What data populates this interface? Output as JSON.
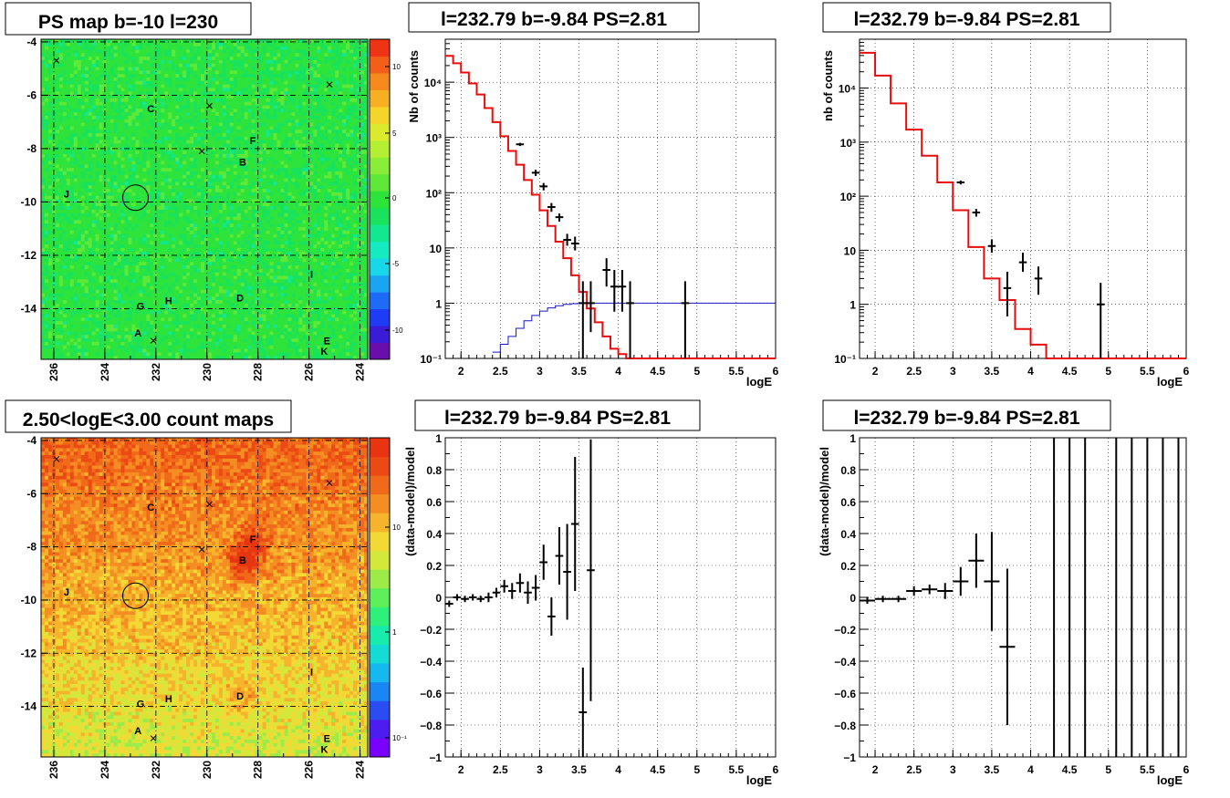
{
  "chart_data": [
    {
      "type": "heatmap",
      "title": "PS map b=-10 l=230",
      "xticks": [
        "236",
        "234",
        "232",
        "230",
        "228",
        "226",
        "224"
      ],
      "yticks": [
        "-4",
        "-6",
        "-8",
        "-10",
        "-12",
        "-14"
      ],
      "xlim": [
        236.5,
        223.7
      ],
      "ylim": [
        -15.9,
        -3.9
      ],
      "grid": true,
      "colorbar": {
        "ticks": [
          "10",
          "5",
          "0",
          "-5",
          "-10"
        ],
        "range": [
          -14,
          14
        ]
      },
      "circle": {
        "l": 232.8,
        "b": -9.84
      },
      "sources": [
        {
          "label": "C",
          "l": 232.2,
          "b": -6.5
        },
        {
          "label": "F",
          "l": 228.2,
          "b": -7.7
        },
        {
          "label": "B",
          "l": 228.6,
          "b": -8.5
        },
        {
          "label": "J",
          "l": 235.5,
          "b": -9.7
        },
        {
          "label": "I",
          "l": 225.9,
          "b": -12.7
        },
        {
          "label": "D",
          "l": 228.7,
          "b": -13.6
        },
        {
          "label": "G",
          "l": 232.6,
          "b": -13.9
        },
        {
          "label": "H",
          "l": 231.5,
          "b": -13.7
        },
        {
          "label": "A",
          "l": 232.7,
          "b": -14.9
        },
        {
          "label": "E",
          "l": 225.3,
          "b": -15.2
        },
        {
          "label": "K",
          "l": 225.4,
          "b": -15.6
        }
      ],
      "crosses": [
        {
          "l": 235.9,
          "b": -4.7
        },
        {
          "l": 229.9,
          "b": -6.4
        },
        {
          "l": 230.2,
          "b": -8.1
        },
        {
          "l": 225.2,
          "b": -5.6
        },
        {
          "l": 232.1,
          "b": -15.2
        }
      ]
    },
    {
      "type": "heatmap",
      "title": "2.50<logE<3.00 count maps",
      "xticks": [
        "236",
        "234",
        "232",
        "230",
        "228",
        "226",
        "224"
      ],
      "yticks": [
        "-4",
        "-6",
        "-8",
        "-10",
        "-12",
        "-14"
      ],
      "xlim": [
        236.5,
        223.7
      ],
      "ylim": [
        -15.9,
        -3.9
      ],
      "grid": true,
      "colorbar": {
        "ticks": [
          "10",
          "1",
          "10⁻¹"
        ],
        "log": true,
        "range": [
          0.05,
          60
        ]
      },
      "hotspots": [
        {
          "l": 228.6,
          "b": -8.5,
          "amp": 2.0
        },
        {
          "l": 228.2,
          "b": -7.7,
          "amp": 1.2
        },
        {
          "l": 228.7,
          "b": -13.6,
          "amp": 0.9
        }
      ]
    },
    {
      "type": "step",
      "title": "l=232.79 b=-9.84 PS=2.81",
      "xlabel": "logE",
      "ylabel": "Nb of counts",
      "xlim": [
        1.8,
        6.0
      ],
      "ylim": [
        0.1,
        60000
      ],
      "log_y": true,
      "xticks": [
        "2",
        "2.5",
        "3",
        "3.5",
        "4",
        "4.5",
        "5",
        "5.5",
        "6"
      ],
      "yticks": [
        "10⁻¹",
        "1",
        "10",
        "10²",
        "10³",
        "10⁴"
      ],
      "grid": true,
      "model_red": {
        "edges": [
          1.8,
          1.9,
          2.0,
          2.1,
          2.2,
          2.3,
          2.4,
          2.5,
          2.6,
          2.7,
          2.8,
          2.9,
          3.0,
          3.1,
          3.2,
          3.3,
          3.4,
          3.5,
          3.6,
          3.7,
          3.8,
          3.9,
          4.0,
          4.1,
          4.2,
          4.3,
          6.0
        ],
        "values": [
          30000,
          22000,
          15000,
          9500,
          6000,
          3400,
          1900,
          1050,
          570,
          320,
          170,
          92,
          48,
          25,
          13,
          6.5,
          3.2,
          1.6,
          0.8,
          0.45,
          0.25,
          0.15,
          0.12,
          0.1,
          0.1,
          0.1
        ]
      },
      "model_blue": {
        "edges": [
          2.4,
          2.5,
          2.6,
          2.7,
          2.8,
          2.9,
          3.0,
          3.1,
          3.2,
          3.3,
          3.4,
          3.5,
          6.0
        ],
        "values": [
          0.13,
          0.18,
          0.25,
          0.35,
          0.48,
          0.6,
          0.72,
          0.82,
          0.9,
          0.95,
          0.98,
          1.0
        ]
      },
      "data": [
        {
          "x": 2.75,
          "y": 750,
          "lo": 700,
          "hi": 800
        },
        {
          "x": 2.95,
          "y": 230,
          "lo": 200,
          "hi": 260
        },
        {
          "x": 3.05,
          "y": 130,
          "lo": 110,
          "hi": 150
        },
        {
          "x": 3.15,
          "y": 55,
          "lo": 45,
          "hi": 65
        },
        {
          "x": 3.25,
          "y": 36,
          "lo": 30,
          "hi": 42
        },
        {
          "x": 3.35,
          "y": 14,
          "lo": 11,
          "hi": 18
        },
        {
          "x": 3.45,
          "y": 12,
          "lo": 9,
          "hi": 16
        },
        {
          "x": 3.55,
          "y": 1,
          "lo": 0.1,
          "hi": 2.5
        },
        {
          "x": 3.65,
          "y": 1,
          "lo": 0.3,
          "hi": 2.5
        },
        {
          "x": 3.85,
          "y": 4,
          "lo": 2,
          "hi": 6.5
        },
        {
          "x": 3.95,
          "y": 2,
          "lo": 0.7,
          "hi": 4
        },
        {
          "x": 4.05,
          "y": 2,
          "lo": 0.7,
          "hi": 4
        },
        {
          "x": 4.15,
          "y": 1,
          "lo": 0.1,
          "hi": 2.5
        },
        {
          "x": 4.85,
          "y": 1,
          "lo": 0.1,
          "hi": 2.5
        }
      ]
    },
    {
      "type": "step",
      "title": "l=232.79 b=-9.84 PS=2.81",
      "xlabel": "logE",
      "ylabel": "nb of counts",
      "xlim": [
        1.8,
        6.0
      ],
      "ylim": [
        0.1,
        80000
      ],
      "log_y": true,
      "xticks": [
        "2",
        "2.5",
        "3",
        "3.5",
        "4",
        "4.5",
        "5",
        "5.5",
        "6"
      ],
      "yticks": [
        "10⁻¹",
        "1",
        "10",
        "10²",
        "10³",
        "10⁴"
      ],
      "grid": true,
      "model_red": {
        "edges": [
          1.8,
          2.0,
          2.2,
          2.4,
          2.6,
          2.8,
          3.0,
          3.2,
          3.4,
          3.6,
          3.8,
          4.0,
          4.2,
          4.4,
          6.0
        ],
        "values": [
          45000,
          17000,
          5200,
          1700,
          560,
          180,
          55,
          11.5,
          3,
          1.2,
          0.35,
          0.18,
          0.1,
          0.1
        ]
      },
      "data": [
        {
          "x": 3.1,
          "y": 180,
          "lo": 165,
          "hi": 195
        },
        {
          "x": 3.3,
          "y": 50,
          "lo": 42,
          "hi": 58
        },
        {
          "x": 3.5,
          "y": 12,
          "lo": 9,
          "hi": 16
        },
        {
          "x": 3.7,
          "y": 2,
          "lo": 0.6,
          "hi": 4
        },
        {
          "x": 3.9,
          "y": 6,
          "lo": 4,
          "hi": 9
        },
        {
          "x": 4.1,
          "y": 3,
          "lo": 1.5,
          "hi": 5
        },
        {
          "x": 4.9,
          "y": 1,
          "lo": 0.1,
          "hi": 2.5
        }
      ]
    },
    {
      "type": "scatter",
      "title": "l=232.79 b=-9.84 PS=2.81",
      "xlabel": "logE",
      "ylabel": "(data-model)/model",
      "xlim": [
        1.8,
        6.0
      ],
      "ylim": [
        -1,
        1
      ],
      "xticks": [
        "2",
        "2.5",
        "3",
        "3.5",
        "4",
        "4.5",
        "5",
        "5.5",
        "6"
      ],
      "yticks": [
        "−1",
        "−0.8",
        "−0.6",
        "−0.4",
        "−0.2",
        "0",
        "0.2",
        "0.4",
        "0.6",
        "0.8",
        "1"
      ],
      "grid": true,
      "data": [
        {
          "x": 1.85,
          "y": -0.04,
          "e": 0.02
        },
        {
          "x": 1.95,
          "y": 0.0,
          "e": 0.02
        },
        {
          "x": 2.05,
          "y": -0.01,
          "e": 0.02
        },
        {
          "x": 2.15,
          "y": 0.0,
          "e": 0.02
        },
        {
          "x": 2.25,
          "y": -0.01,
          "e": 0.02
        },
        {
          "x": 2.35,
          "y": 0.0,
          "e": 0.03
        },
        {
          "x": 2.45,
          "y": 0.03,
          "e": 0.03
        },
        {
          "x": 2.55,
          "y": 0.07,
          "e": 0.04
        },
        {
          "x": 2.65,
          "y": 0.04,
          "e": 0.05
        },
        {
          "x": 2.75,
          "y": 0.09,
          "e": 0.06
        },
        {
          "x": 2.85,
          "y": 0.03,
          "e": 0.07
        },
        {
          "x": 2.95,
          "y": 0.06,
          "e": 0.08
        },
        {
          "x": 3.05,
          "y": 0.22,
          "e": 0.11
        },
        {
          "x": 3.15,
          "y": -0.12,
          "e": 0.12
        },
        {
          "x": 3.25,
          "y": 0.26,
          "e": 0.18
        },
        {
          "x": 3.35,
          "y": 0.16,
          "e": 0.3
        },
        {
          "x": 3.45,
          "y": 0.46,
          "e": 0.42
        },
        {
          "x": 3.55,
          "y": -0.72,
          "e": 0.28
        },
        {
          "x": 3.65,
          "y": 0.17,
          "e": 0.82
        }
      ]
    },
    {
      "type": "scatter",
      "title": "l=232.79 b=-9.84 PS=2.81",
      "xlabel": "logE",
      "ylabel": "(data-model)/model",
      "xlim": [
        1.8,
        6.0
      ],
      "ylim": [
        -1,
        1
      ],
      "xticks": [
        "2",
        "2.5",
        "3",
        "3.5",
        "4",
        "4.5",
        "5",
        "5.5",
        "6"
      ],
      "yticks": [
        "−1",
        "−0.8",
        "−0.6",
        "−0.4",
        "−0.2",
        "0",
        "0.2",
        "0.4",
        "0.6",
        "0.8",
        "1"
      ],
      "grid": true,
      "data": [
        {
          "x": 1.9,
          "y": -0.02,
          "e": 0.02
        },
        {
          "x": 2.1,
          "y": -0.01,
          "e": 0.02
        },
        {
          "x": 2.3,
          "y": -0.01,
          "e": 0.02
        },
        {
          "x": 2.5,
          "y": 0.04,
          "e": 0.03
        },
        {
          "x": 2.7,
          "y": 0.05,
          "e": 0.03
        },
        {
          "x": 2.9,
          "y": 0.04,
          "e": 0.05
        },
        {
          "x": 3.1,
          "y": 0.1,
          "e": 0.09
        },
        {
          "x": 3.3,
          "y": 0.23,
          "e": 0.17
        },
        {
          "x": 3.5,
          "y": 0.1,
          "e": 0.31
        },
        {
          "x": 3.7,
          "y": -0.31,
          "e": 0.49
        }
      ],
      "full_bars": [
        4.3,
        4.5,
        4.7,
        5.1,
        5.3,
        5.5,
        5.7,
        5.9
      ]
    }
  ]
}
